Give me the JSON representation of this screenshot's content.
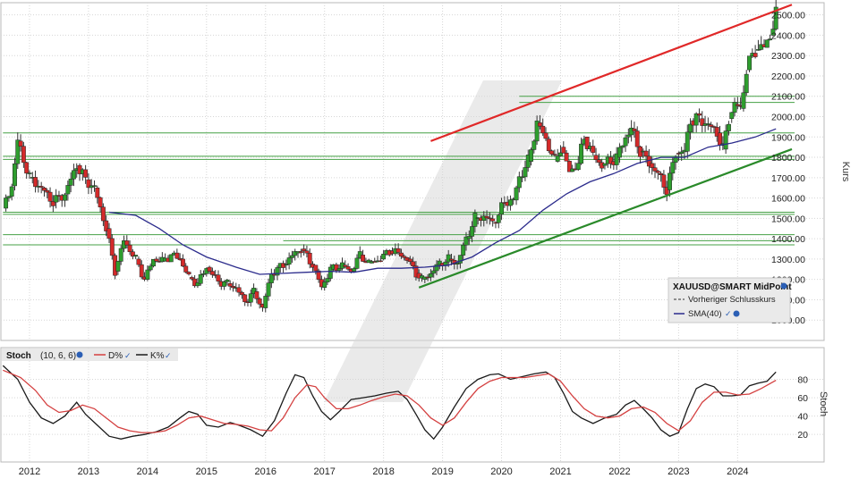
{
  "chart_data": [
    {
      "type": "candlestick",
      "title": "",
      "ylabel": "Kurs",
      "ylim": [
        900,
        2560
      ],
      "yticks": [
        1000,
        1100,
        1200,
        1300,
        1400,
        1500,
        1600,
        1700,
        1800,
        1900,
        2000,
        2100,
        2200,
        2300,
        2400,
        2500
      ],
      "ytick_labels": [
        "1000.00",
        "1100.00",
        "1200.00",
        "1300.00",
        "1400.00",
        "1500.00",
        "1600.00",
        "1700.00",
        "1800.00",
        "1900.00",
        "2000.00",
        "2100.00",
        "2200.00",
        "2300.00",
        "2400.00",
        "2500.00"
      ],
      "xlim": [
        2011.5,
        2024.92
      ],
      "xticks": [
        2012,
        2013,
        2014,
        2015,
        2016,
        2017,
        2018,
        2019,
        2020,
        2021,
        2022,
        2023,
        2024
      ],
      "xtick_labels": [
        "2012",
        "2013",
        "2014",
        "2015",
        "2016",
        "2017",
        "2018",
        "2019",
        "2020",
        "2021",
        "2022",
        "2023",
        "2024"
      ],
      "legend": {
        "title": "XAUUSD@SMART MidPoint",
        "items": [
          "Vorheriger Schlusskurs",
          "SMA(40)"
        ],
        "position": "bottom-right"
      },
      "colors": {
        "up": "#2e9e2e",
        "down": "#d42a2a",
        "sma": "#2b2b8c",
        "trend_up": "#e02828",
        "trend_support": "#2a8a2a",
        "horizontal": "#45a045"
      },
      "close_points": [
        [
          2011.55,
          1550
        ],
        [
          2011.7,
          1660
        ],
        [
          2011.8,
          1880
        ],
        [
          2012.0,
          1700
        ],
        [
          2012.2,
          1650
        ],
        [
          2012.4,
          1580
        ],
        [
          2012.6,
          1620
        ],
        [
          2012.8,
          1760
        ],
        [
          2012.95,
          1690
        ],
        [
          2013.1,
          1650
        ],
        [
          2013.3,
          1450
        ],
        [
          2013.45,
          1240
        ],
        [
          2013.6,
          1390
        ],
        [
          2013.8,
          1300
        ],
        [
          2013.95,
          1200
        ],
        [
          2014.1,
          1300
        ],
        [
          2014.25,
          1290
        ],
        [
          2014.4,
          1320
        ],
        [
          2014.55,
          1300
        ],
        [
          2014.7,
          1210
        ],
        [
          2014.85,
          1180
        ],
        [
          2015.0,
          1260
        ],
        [
          2015.2,
          1190
        ],
        [
          2015.35,
          1180
        ],
        [
          2015.5,
          1160
        ],
        [
          2015.65,
          1090
        ],
        [
          2015.8,
          1140
        ],
        [
          2015.95,
          1060
        ],
        [
          2016.1,
          1230
        ],
        [
          2016.3,
          1270
        ],
        [
          2016.5,
          1330
        ],
        [
          2016.6,
          1350
        ],
        [
          2016.8,
          1270
        ],
        [
          2016.95,
          1160
        ],
        [
          2017.1,
          1250
        ],
        [
          2017.3,
          1270
        ],
        [
          2017.45,
          1240
        ],
        [
          2017.6,
          1320
        ],
        [
          2017.75,
          1280
        ],
        [
          2017.95,
          1300
        ],
        [
          2018.1,
          1340
        ],
        [
          2018.25,
          1330
        ],
        [
          2018.4,
          1300
        ],
        [
          2018.55,
          1230
        ],
        [
          2018.65,
          1200
        ],
        [
          2018.8,
          1230
        ],
        [
          2018.95,
          1280
        ],
        [
          2019.1,
          1300
        ],
        [
          2019.25,
          1280
        ],
        [
          2019.4,
          1400
        ],
        [
          2019.55,
          1500
        ],
        [
          2019.7,
          1510
        ],
        [
          2019.85,
          1480
        ],
        [
          2019.95,
          1520
        ],
        [
          2020.05,
          1580
        ],
        [
          2020.2,
          1590
        ],
        [
          2020.3,
          1700
        ],
        [
          2020.45,
          1780
        ],
        [
          2020.6,
          1970
        ],
        [
          2020.75,
          1890
        ],
        [
          2020.9,
          1780
        ],
        [
          2021.0,
          1850
        ],
        [
          2021.15,
          1730
        ],
        [
          2021.3,
          1770
        ],
        [
          2021.4,
          1900
        ],
        [
          2021.55,
          1810
        ],
        [
          2021.7,
          1760
        ],
        [
          2021.85,
          1780
        ],
        [
          2021.95,
          1800
        ],
        [
          2022.1,
          1900
        ],
        [
          2022.2,
          1940
        ],
        [
          2022.35,
          1830
        ],
        [
          2022.5,
          1770
        ],
        [
          2022.65,
          1720
        ],
        [
          2022.8,
          1640
        ],
        [
          2022.95,
          1820
        ],
        [
          2023.1,
          1830
        ],
        [
          2023.2,
          1980
        ],
        [
          2023.35,
          1990
        ],
        [
          2023.5,
          1960
        ],
        [
          2023.65,
          1920
        ],
        [
          2023.75,
          1840
        ],
        [
          2023.85,
          1990
        ],
        [
          2023.95,
          2060
        ],
        [
          2024.05,
          2040
        ],
        [
          2024.15,
          2230
        ],
        [
          2024.3,
          2330
        ],
        [
          2024.45,
          2340
        ],
        [
          2024.55,
          2400
        ],
        [
          2024.65,
          2500
        ]
      ],
      "sma_points": [
        [
          2013.35,
          1530
        ],
        [
          2013.8,
          1515
        ],
        [
          2014.2,
          1450
        ],
        [
          2014.6,
          1370
        ],
        [
          2015.0,
          1310
        ],
        [
          2015.5,
          1260
        ],
        [
          2015.9,
          1225
        ],
        [
          2016.3,
          1230
        ],
        [
          2016.7,
          1235
        ],
        [
          2017.1,
          1240
        ],
        [
          2017.5,
          1235
        ],
        [
          2017.9,
          1255
        ],
        [
          2018.3,
          1255
        ],
        [
          2018.7,
          1260
        ],
        [
          2019.1,
          1270
        ],
        [
          2019.5,
          1310
        ],
        [
          2019.9,
          1380
        ],
        [
          2020.3,
          1440
        ],
        [
          2020.7,
          1540
        ],
        [
          2021.1,
          1620
        ],
        [
          2021.5,
          1680
        ],
        [
          2021.9,
          1720
        ],
        [
          2022.3,
          1770
        ],
        [
          2022.7,
          1800
        ],
        [
          2023.1,
          1800
        ],
        [
          2023.5,
          1850
        ],
        [
          2023.9,
          1870
        ],
        [
          2024.3,
          1900
        ],
        [
          2024.65,
          1940
        ]
      ],
      "trendlines": [
        {
          "kind": "resistance",
          "from": [
            2018.8,
            1880
          ],
          "to": [
            2024.92,
            2550
          ]
        },
        {
          "kind": "support",
          "from": [
            2018.6,
            1160
          ],
          "to": [
            2024.92,
            1840
          ]
        }
      ],
      "horizontal_lines": [
        {
          "y": 1920,
          "from": 2011.55
        },
        {
          "y": 1805,
          "from": 2011.55
        },
        {
          "y": 1790,
          "from": 2011.55
        },
        {
          "y": 1530,
          "from": 2011.55
        },
        {
          "y": 1520,
          "from": 2011.55
        },
        {
          "y": 1420,
          "from": 2011.55
        },
        {
          "y": 1390,
          "from": 2016.3
        },
        {
          "y": 1370,
          "from": 2011.55
        },
        {
          "y": 2100,
          "from": 2020.3
        },
        {
          "y": 2070,
          "from": 2020.3
        }
      ]
    },
    {
      "type": "line",
      "title": "Stoch",
      "ylabel": "Stoch",
      "params": "(10, 6, 6)",
      "ylim": [
        0,
        100
      ],
      "yticks": [
        20,
        40,
        60,
        80
      ],
      "ytick_labels": [
        "20",
        "40",
        "60",
        "80"
      ],
      "legend": {
        "items": [
          "D%",
          "K%"
        ],
        "position": "top-left"
      },
      "series": [
        {
          "name": "K%",
          "color": "#1a1a1a",
          "points": [
            [
              2011.55,
              95
            ],
            [
              2011.8,
              80
            ],
            [
              2012.0,
              55
            ],
            [
              2012.2,
              38
            ],
            [
              2012.4,
              32
            ],
            [
              2012.6,
              40
            ],
            [
              2012.8,
              55
            ],
            [
              2012.95,
              42
            ],
            [
              2013.15,
              30
            ],
            [
              2013.35,
              18
            ],
            [
              2013.55,
              15
            ],
            [
              2013.75,
              18
            ],
            [
              2013.95,
              20
            ],
            [
              2014.15,
              23
            ],
            [
              2014.35,
              28
            ],
            [
              2014.55,
              38
            ],
            [
              2014.7,
              45
            ],
            [
              2014.85,
              42
            ],
            [
              2015.0,
              30
            ],
            [
              2015.2,
              28
            ],
            [
              2015.4,
              33
            ],
            [
              2015.55,
              30
            ],
            [
              2015.75,
              25
            ],
            [
              2015.95,
              18
            ],
            [
              2016.15,
              35
            ],
            [
              2016.35,
              65
            ],
            [
              2016.5,
              85
            ],
            [
              2016.65,
              82
            ],
            [
              2016.8,
              62
            ],
            [
              2016.95,
              45
            ],
            [
              2017.1,
              36
            ],
            [
              2017.25,
              45
            ],
            [
              2017.45,
              58
            ],
            [
              2017.65,
              60
            ],
            [
              2017.85,
              62
            ],
            [
              2018.05,
              65
            ],
            [
              2018.25,
              67
            ],
            [
              2018.4,
              58
            ],
            [
              2018.55,
              42
            ],
            [
              2018.7,
              25
            ],
            [
              2018.85,
              15
            ],
            [
              2019.0,
              28
            ],
            [
              2019.2,
              50
            ],
            [
              2019.4,
              70
            ],
            [
              2019.6,
              80
            ],
            [
              2019.8,
              85
            ],
            [
              2019.95,
              86
            ],
            [
              2020.15,
              80
            ],
            [
              2020.35,
              83
            ],
            [
              2020.55,
              86
            ],
            [
              2020.75,
              88
            ],
            [
              2020.9,
              82
            ],
            [
              2021.05,
              65
            ],
            [
              2021.2,
              45
            ],
            [
              2021.35,
              38
            ],
            [
              2021.55,
              32
            ],
            [
              2021.75,
              38
            ],
            [
              2021.95,
              42
            ],
            [
              2022.1,
              52
            ],
            [
              2022.25,
              57
            ],
            [
              2022.4,
              48
            ],
            [
              2022.55,
              38
            ],
            [
              2022.7,
              25
            ],
            [
              2022.85,
              18
            ],
            [
              2023.0,
              22
            ],
            [
              2023.15,
              48
            ],
            [
              2023.3,
              70
            ],
            [
              2023.45,
              75
            ],
            [
              2023.6,
              72
            ],
            [
              2023.75,
              62
            ],
            [
              2023.9,
              62
            ],
            [
              2024.05,
              63
            ],
            [
              2024.2,
              73
            ],
            [
              2024.35,
              76
            ],
            [
              2024.5,
              78
            ],
            [
              2024.65,
              88
            ]
          ]
        },
        {
          "name": "D%",
          "color": "#d44040",
          "points": [
            [
              2011.55,
              90
            ],
            [
              2011.85,
              82
            ],
            [
              2012.1,
              68
            ],
            [
              2012.3,
              52
            ],
            [
              2012.5,
              44
            ],
            [
              2012.7,
              46
            ],
            [
              2012.9,
              52
            ],
            [
              2013.1,
              48
            ],
            [
              2013.3,
              38
            ],
            [
              2013.5,
              28
            ],
            [
              2013.7,
              24
            ],
            [
              2013.9,
              22
            ],
            [
              2014.1,
              22
            ],
            [
              2014.3,
              24
            ],
            [
              2014.5,
              30
            ],
            [
              2014.7,
              38
            ],
            [
              2014.9,
              40
            ],
            [
              2015.1,
              36
            ],
            [
              2015.3,
              32
            ],
            [
              2015.5,
              31
            ],
            [
              2015.7,
              29
            ],
            [
              2015.9,
              25
            ],
            [
              2016.1,
              24
            ],
            [
              2016.3,
              38
            ],
            [
              2016.5,
              60
            ],
            [
              2016.7,
              74
            ],
            [
              2016.85,
              72
            ],
            [
              2017.0,
              60
            ],
            [
              2017.2,
              48
            ],
            [
              2017.4,
              48
            ],
            [
              2017.6,
              52
            ],
            [
              2017.8,
              57
            ],
            [
              2018.0,
              61
            ],
            [
              2018.2,
              64
            ],
            [
              2018.4,
              62
            ],
            [
              2018.6,
              52
            ],
            [
              2018.8,
              38
            ],
            [
              2019.0,
              30
            ],
            [
              2019.2,
              38
            ],
            [
              2019.4,
              55
            ],
            [
              2019.6,
              70
            ],
            [
              2019.8,
              78
            ],
            [
              2020.0,
              82
            ],
            [
              2020.2,
              82
            ],
            [
              2020.4,
              82
            ],
            [
              2020.6,
              84
            ],
            [
              2020.8,
              86
            ],
            [
              2021.0,
              78
            ],
            [
              2021.2,
              62
            ],
            [
              2021.4,
              48
            ],
            [
              2021.6,
              40
            ],
            [
              2021.8,
              38
            ],
            [
              2022.0,
              40
            ],
            [
              2022.2,
              48
            ],
            [
              2022.4,
              50
            ],
            [
              2022.6,
              44
            ],
            [
              2022.8,
              32
            ],
            [
              2023.0,
              24
            ],
            [
              2023.2,
              35
            ],
            [
              2023.4,
              55
            ],
            [
              2023.6,
              66
            ],
            [
              2023.8,
              66
            ],
            [
              2024.0,
              63
            ],
            [
              2024.2,
              64
            ],
            [
              2024.4,
              70
            ],
            [
              2024.65,
              79
            ]
          ]
        }
      ]
    }
  ]
}
